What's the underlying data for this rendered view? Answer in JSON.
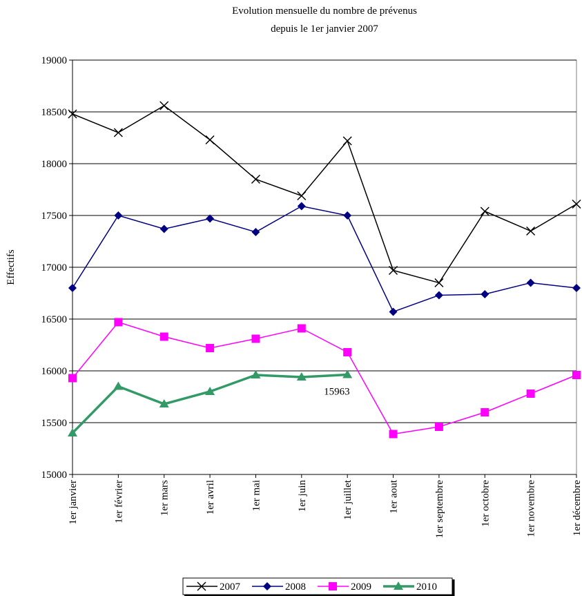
{
  "chart_data": {
    "type": "line",
    "title": "Evolution mensuelle du nombre de prévenus",
    "subtitle": "depuis le 1er janvier 2007",
    "y_label": "Effectifs",
    "categories": [
      "1er janvier",
      "1er février",
      "1er mars",
      "1er avril",
      "1er mai",
      "1er juin",
      "1er juillet",
      "1er aout",
      "1er septembre",
      "1er octobre",
      "1er novembre",
      "1er décembre"
    ],
    "series": [
      {
        "name": "2007",
        "color": "#000000",
        "marker": "cross",
        "values": [
          18480,
          18300,
          18560,
          18230,
          17850,
          17690,
          18220,
          16970,
          16850,
          17540,
          17350,
          17610
        ]
      },
      {
        "name": "2008",
        "color": "#000080",
        "marker": "diamond",
        "values": [
          16800,
          17500,
          17370,
          17470,
          17340,
          17590,
          17500,
          16570,
          16730,
          16740,
          16850,
          16800
        ]
      },
      {
        "name": "2009",
        "color": "#ff00ff",
        "marker": "square",
        "values": [
          15930,
          16470,
          16330,
          16220,
          16310,
          16410,
          16180,
          15390,
          15460,
          15600,
          15780,
          15960
        ]
      },
      {
        "name": "2010",
        "color": "#339966",
        "marker": "triangle",
        "values": [
          15400,
          15850,
          15680,
          15800,
          15960,
          15940,
          15963,
          null,
          null,
          null,
          null,
          null
        ],
        "value_labels": [
          null,
          null,
          null,
          null,
          null,
          null,
          "15963",
          null,
          null,
          null,
          null,
          null
        ]
      }
    ],
    "ylim": [
      15000,
      19000
    ],
    "yticks": [
      15000,
      15500,
      16000,
      16500,
      17000,
      17500,
      18000,
      18500,
      19000
    ],
    "grid": true,
    "legend": "bottom"
  }
}
